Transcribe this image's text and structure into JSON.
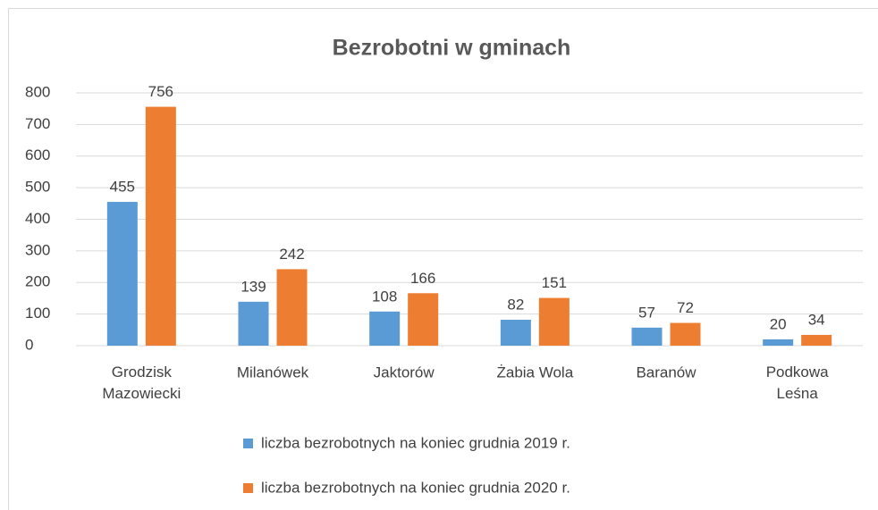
{
  "chart_data": {
    "type": "bar",
    "title": "Bezrobotni w gminach",
    "categories": [
      "Grodzisk Mazowiecki",
      "Milanówek",
      "Jaktorów",
      "Żabia Wola",
      "Baranów",
      "Podkowa Leśna"
    ],
    "series": [
      {
        "name": "liczba bezrobotnych na koniec grudnia 2019 r.",
        "color": "#5b9bd5",
        "values": [
          455,
          139,
          108,
          82,
          57,
          20
        ]
      },
      {
        "name": "liczba bezrobotnych na koniec grudnia 2020 r.",
        "color": "#ed7d31",
        "values": [
          756,
          242,
          166,
          151,
          72,
          34
        ]
      }
    ],
    "ylim": [
      0,
      800
    ],
    "yticks": [
      0,
      100,
      200,
      300,
      400,
      500,
      600,
      700,
      800
    ],
    "grid": true,
    "legend": "bottom"
  }
}
